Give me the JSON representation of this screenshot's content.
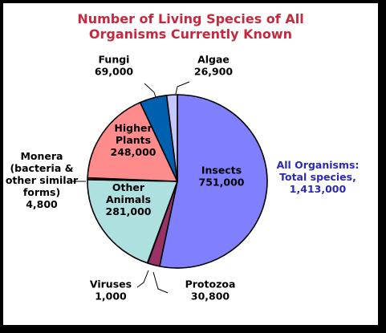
{
  "chart_data": {
    "type": "pie",
    "title": "Number of Living Species of All\nOrganisms Currently Known",
    "slices": [
      {
        "label": "Insects",
        "value": 751000,
        "value_text": "751,000",
        "color": "#8080ff"
      },
      {
        "label": "Protozoa",
        "value": 30800,
        "value_text": "30,800",
        "color": "#993366"
      },
      {
        "label": "Viruses",
        "value": 1000,
        "value_text": "1,000",
        "color": "#ff0000"
      },
      {
        "label": "Other Animals",
        "value": 281000,
        "value_text": "281,000",
        "color": "#aee0e0"
      },
      {
        "label": "Monera (bacteria & other similar forms)",
        "value": 4800,
        "value_text": "4,800",
        "color": "#c01010"
      },
      {
        "label": "Higher Plants",
        "value": 248000,
        "value_text": "248,000",
        "color": "#ff8c8c"
      },
      {
        "label": "Fungi",
        "value": 69000,
        "value_text": "69,000",
        "color": "#0060b0"
      },
      {
        "label": "Algae",
        "value": 26900,
        "value_text": "26,900",
        "color": "#c6c6ff"
      }
    ],
    "annotation": [
      "All Organisms:",
      "Total species,",
      "1,413,000"
    ],
    "legend": "none"
  }
}
